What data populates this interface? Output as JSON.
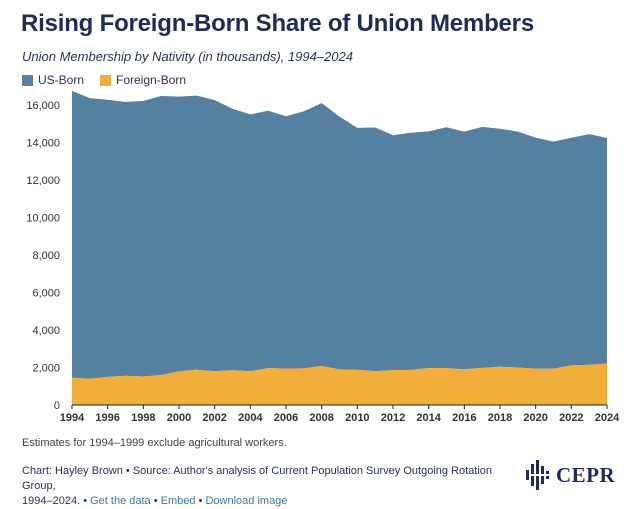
{
  "header": {
    "title": "Rising Foreign-Born Share of Union Members",
    "subtitle": "Union Membership by Nativity (in thousands), 1994–2024"
  },
  "colors": {
    "us_born": "#5580a0",
    "foreign_born": "#f2ae3a",
    "title": "#1f2d56",
    "link": "#3f7a9e"
  },
  "legend": [
    {
      "label": "US-Born",
      "color": "#5580a0"
    },
    {
      "label": "Foreign-Born",
      "color": "#f2ae3a"
    }
  ],
  "chart_data": {
    "type": "area",
    "stacked": true,
    "x": [
      1994,
      1995,
      1996,
      1997,
      1998,
      1999,
      2000,
      2001,
      2002,
      2003,
      2004,
      2005,
      2006,
      2007,
      2008,
      2009,
      2010,
      2011,
      2012,
      2013,
      2014,
      2015,
      2016,
      2017,
      2018,
      2019,
      2020,
      2021,
      2022,
      2023,
      2024
    ],
    "series": [
      {
        "name": "Foreign-Born",
        "color": "#f2ae3a",
        "values": [
          1450,
          1400,
          1500,
          1560,
          1520,
          1600,
          1800,
          1880,
          1800,
          1850,
          1800,
          1970,
          1940,
          1950,
          2080,
          1900,
          1880,
          1800,
          1860,
          1870,
          1970,
          1970,
          1900,
          1980,
          2040,
          2000,
          1930,
          1930,
          2110,
          2150,
          2210
        ]
      },
      {
        "name": "US-Born",
        "color": "#5580a0",
        "values": [
          15300,
          14970,
          14780,
          14600,
          14700,
          14880,
          14650,
          14620,
          14460,
          13950,
          13700,
          13720,
          13460,
          13720,
          14020,
          13480,
          12900,
          13000,
          12530,
          12650,
          12620,
          12840,
          12680,
          12850,
          12690,
          12580,
          12330,
          12120,
          12140,
          12300,
          12030
        ]
      }
    ],
    "xticks": [
      "1994",
      "1996",
      "1998",
      "2000",
      "2002",
      "2004",
      "2006",
      "2008",
      "2010",
      "2012",
      "2014",
      "2016",
      "2018",
      "2020",
      "2022",
      "2024"
    ],
    "yticks": [
      "0",
      "2,000",
      "4,000",
      "6,000",
      "8,000",
      "10,000",
      "12,000",
      "14,000",
      "16,000"
    ],
    "ylim": [
      0,
      16800
    ],
    "xlim": [
      1994,
      2024
    ],
    "grid": false,
    "legend_position": "top-left"
  },
  "footer": {
    "note": "Estimates for 1994–1999 exclude agricultural workers.",
    "credit_line1": "Chart: Hayley Brown • Source: Author's analysis of Current Population Survey Outgoing Rotation Group,",
    "credit_line2_prefix": "1994–2024.",
    "sep": "•",
    "get_data": "Get the data",
    "embed": "Embed",
    "download": "Download image",
    "logo_text": "CEPR"
  }
}
